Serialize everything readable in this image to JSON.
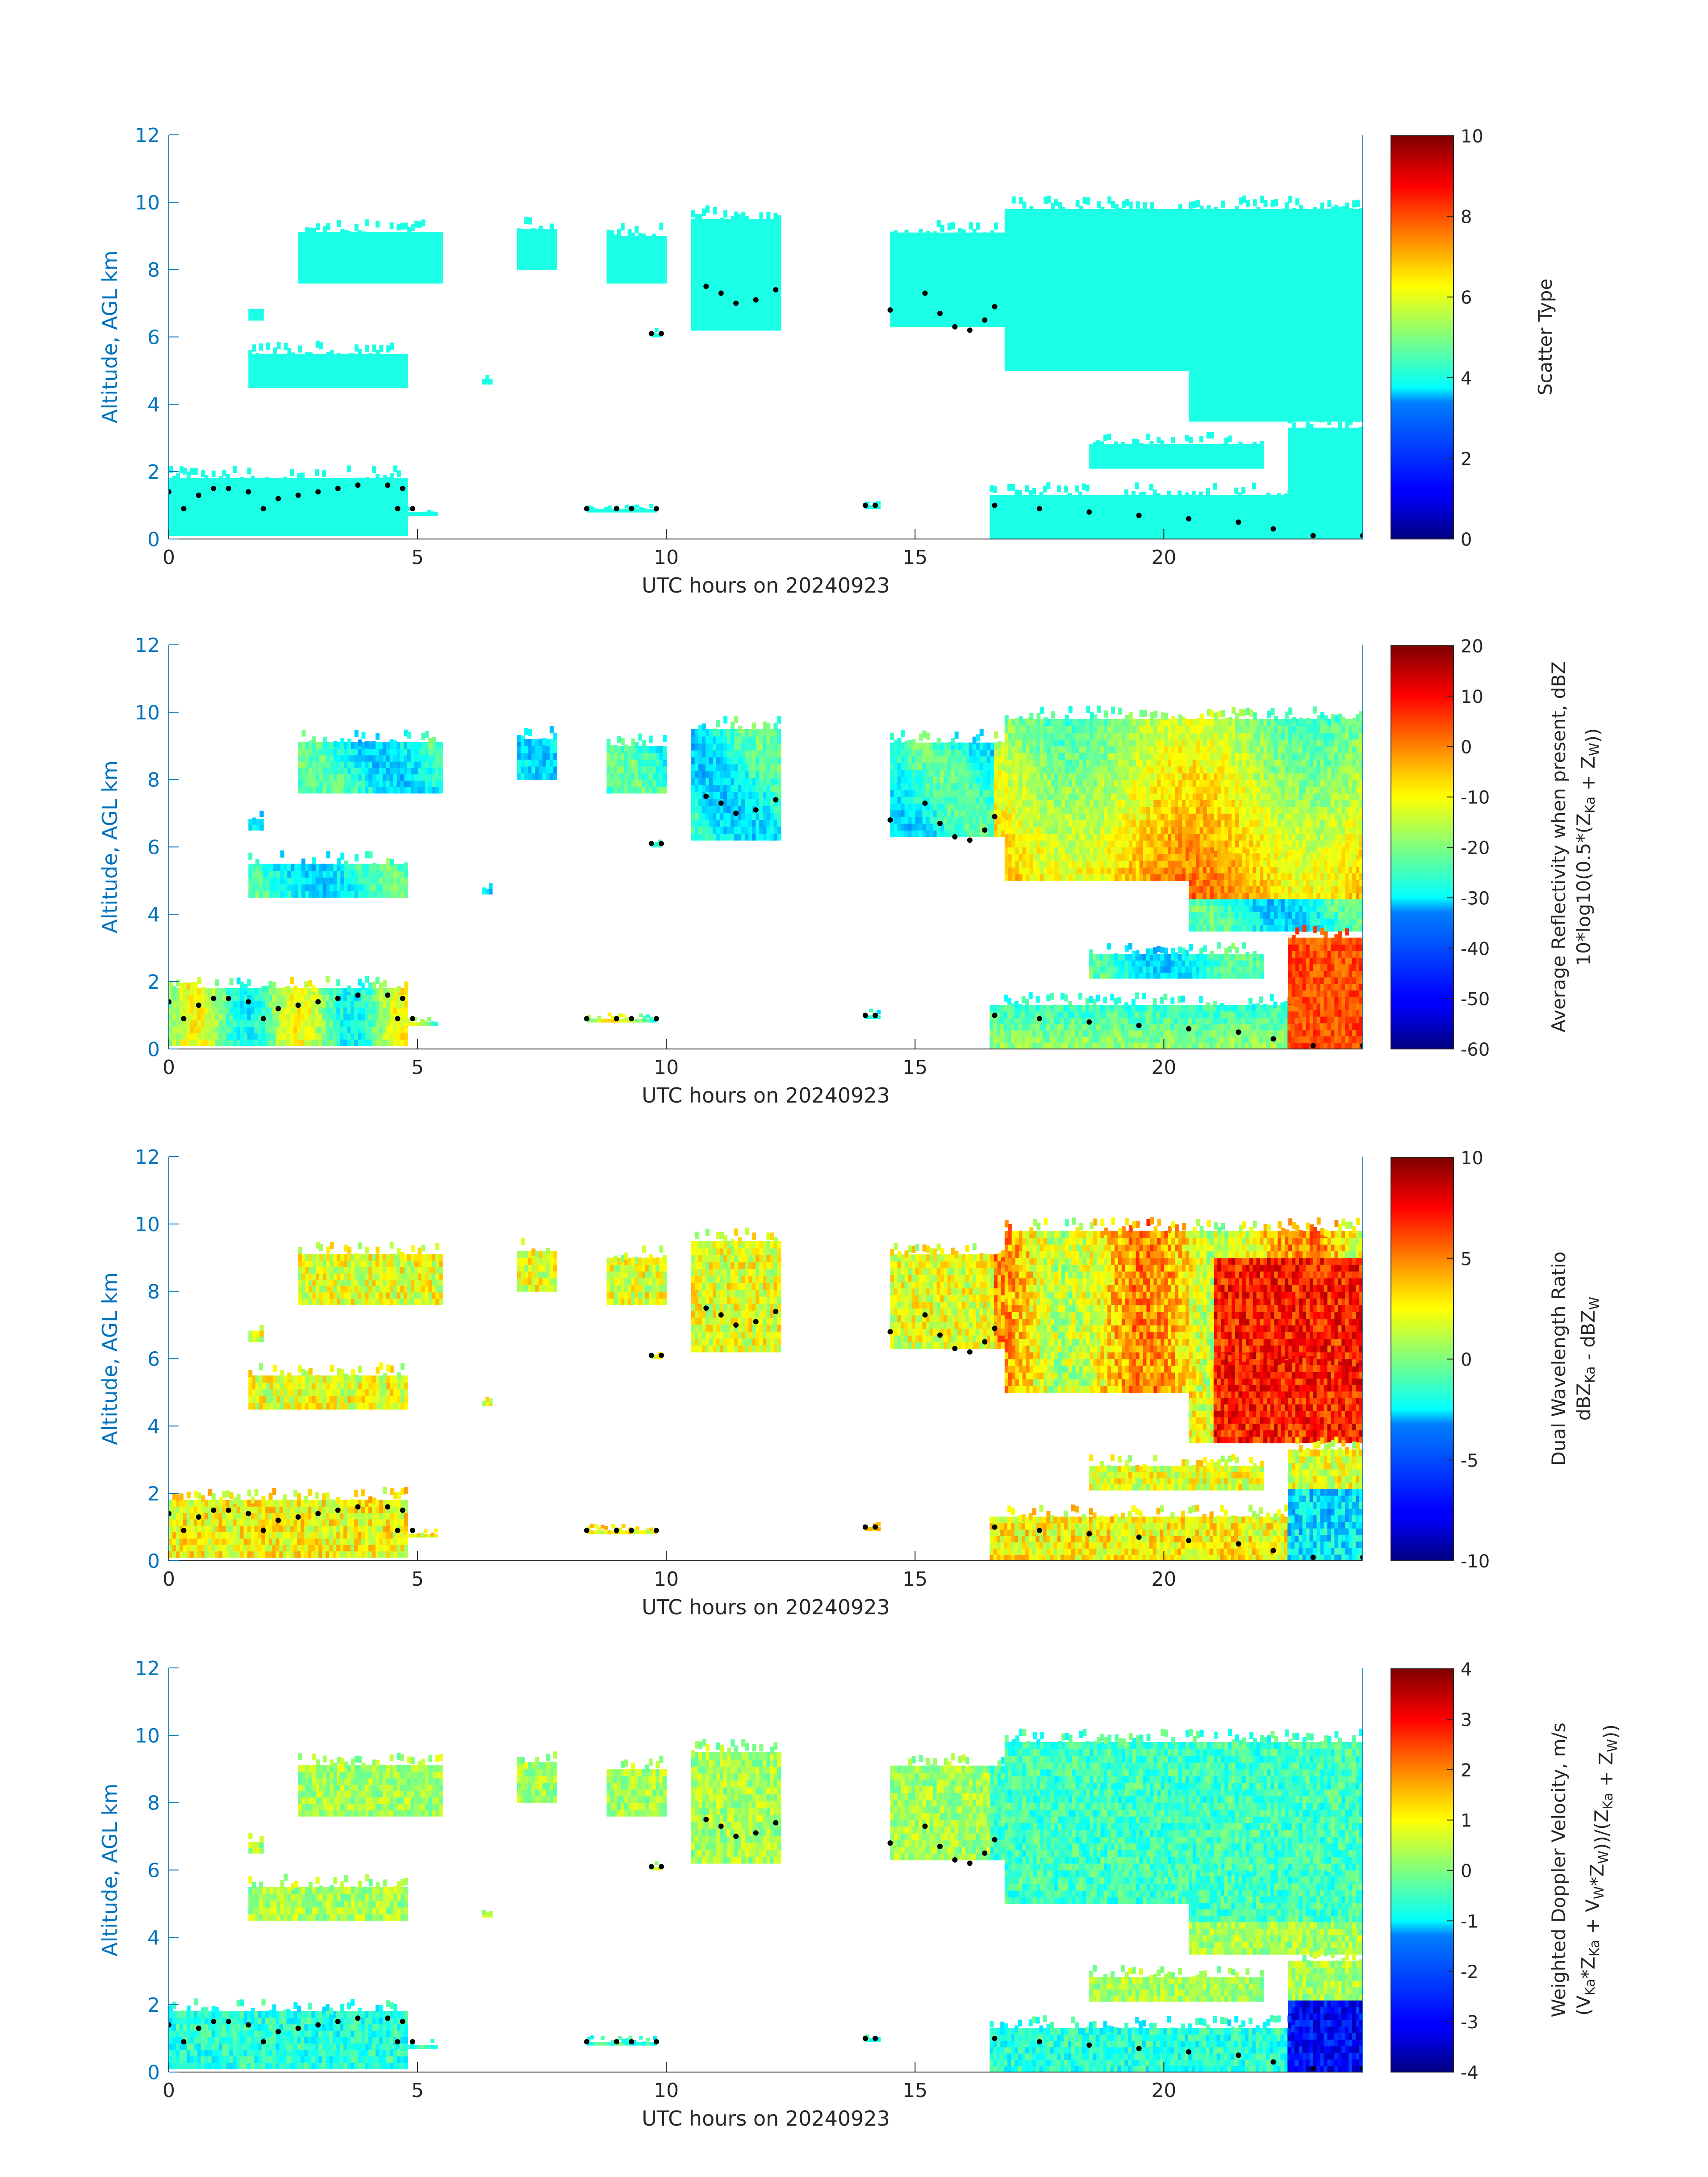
{
  "chart_data": [
    {
      "type": "heatmap",
      "xlabel": "UTC hours on 20240923",
      "ylabel": "Altitude, AGL km",
      "xlim": [
        0,
        24
      ],
      "ylim": [
        0,
        12
      ],
      "xticks": [
        0,
        5,
        10,
        15,
        20
      ],
      "yticks": [
        0,
        2,
        4,
        6,
        8,
        10,
        12
      ],
      "colorbar": {
        "label_lines": [
          "Scatter Type"
        ],
        "ticks": [
          0,
          2,
          4,
          6,
          8,
          10
        ],
        "range": [
          0,
          10
        ]
      },
      "colormap": "jet",
      "dominant_value": 4,
      "overlay": "cloud-base points (black dots)"
    },
    {
      "type": "heatmap",
      "xlabel": "UTC hours on 20240923",
      "ylabel": "Altitude, AGL km",
      "xlim": [
        0,
        24
      ],
      "ylim": [
        0,
        12
      ],
      "xticks": [
        0,
        5,
        10,
        15,
        20
      ],
      "yticks": [
        0,
        2,
        4,
        6,
        8,
        10,
        12
      ],
      "colorbar": {
        "label_lines": [
          "Average Reflectivity when present, dBZ",
          "10*log10(0.5*(Z_Ka + Z_W))"
        ],
        "ticks": [
          -60,
          -50,
          -40,
          -30,
          -20,
          -10,
          0,
          10,
          20
        ],
        "range": [
          -60,
          20
        ]
      },
      "colormap": "jet"
    },
    {
      "type": "heatmap",
      "xlabel": "UTC hours on 20240923",
      "ylabel": "Altitude, AGL km",
      "xlim": [
        0,
        24
      ],
      "ylim": [
        0,
        12
      ],
      "xticks": [
        0,
        5,
        10,
        15,
        20
      ],
      "yticks": [
        0,
        2,
        4,
        6,
        8,
        10,
        12
      ],
      "colorbar": {
        "label_lines": [
          "Dual Wavelength Ratio",
          "dBZ_Ka - dBZ_W"
        ],
        "ticks": [
          -10,
          -5,
          0,
          5,
          10
        ],
        "range": [
          -10,
          10
        ]
      },
      "colormap": "jet"
    },
    {
      "type": "heatmap",
      "xlabel": "UTC hours on 20240923",
      "ylabel": "Altitude, AGL km",
      "xlim": [
        0,
        24
      ],
      "ylim": [
        0,
        12
      ],
      "xticks": [
        0,
        5,
        10,
        15,
        20
      ],
      "yticks": [
        0,
        2,
        4,
        6,
        8,
        10,
        12
      ],
      "colorbar": {
        "label_lines": [
          "Weighted Doppler Velocity, m/s",
          "(V_Ka*Z_Ka + V_W*Z_W))/(Z_Ka + Z_W))"
        ],
        "ticks": [
          -4,
          -3,
          -2,
          -1,
          0,
          1,
          2,
          3,
          4
        ],
        "range": [
          -4,
          4
        ]
      },
      "colormap": "jet"
    }
  ],
  "cloud_regions": [
    {
      "t0": 1.6,
      "t1": 1.9,
      "z0": 6.5,
      "z1": 7.0
    },
    {
      "t0": 1.6,
      "t1": 4.8,
      "z0": 4.5,
      "z1": 5.7
    },
    {
      "t0": 2.6,
      "t1": 5.5,
      "z0": 7.6,
      "z1": 9.3
    },
    {
      "t0": 0.0,
      "t1": 4.8,
      "z0": 0.1,
      "z1": 2.0
    },
    {
      "t0": 4.5,
      "t1": 5.4,
      "z0": 0.7,
      "z1": 0.9
    },
    {
      "t0": 6.3,
      "t1": 6.5,
      "z0": 4.6,
      "z1": 4.9
    },
    {
      "t0": 7.0,
      "t1": 7.8,
      "z0": 8.0,
      "z1": 9.4
    },
    {
      "t0": 8.8,
      "t1": 10.0,
      "z0": 7.6,
      "z1": 9.2
    },
    {
      "t0": 9.7,
      "t1": 9.9,
      "z0": 6.0,
      "z1": 6.2
    },
    {
      "t0": 10.5,
      "t1": 12.3,
      "z0": 6.2,
      "z1": 9.7
    },
    {
      "t0": 14.5,
      "t1": 16.8,
      "z0": 6.3,
      "z1": 9.3
    },
    {
      "t0": 16.8,
      "t1": 24.0,
      "z0": 5.0,
      "z1": 10.0
    },
    {
      "t0": 20.5,
      "t1": 24.0,
      "z0": 3.5,
      "z1": 6.0
    },
    {
      "t0": 22.5,
      "t1": 24.0,
      "z0": 0.0,
      "z1": 3.5
    },
    {
      "t0": 18.5,
      "t1": 22.0,
      "z0": 2.1,
      "z1": 3.0
    },
    {
      "t0": 16.5,
      "t1": 22.7,
      "z0": 0.0,
      "z1": 1.5
    },
    {
      "t0": 8.4,
      "t1": 9.8,
      "z0": 0.8,
      "z1": 1.0
    },
    {
      "t0": 14.0,
      "t1": 14.3,
      "z0": 0.9,
      "z1": 1.1
    }
  ],
  "cloud_base_points": [
    [
      0.0,
      1.4
    ],
    [
      0.3,
      0.9
    ],
    [
      0.6,
      1.3
    ],
    [
      0.9,
      1.5
    ],
    [
      1.2,
      1.5
    ],
    [
      1.6,
      1.4
    ],
    [
      1.9,
      0.9
    ],
    [
      2.2,
      1.2
    ],
    [
      2.6,
      1.3
    ],
    [
      3.0,
      1.4
    ],
    [
      3.4,
      1.5
    ],
    [
      3.8,
      1.6
    ],
    [
      4.4,
      1.6
    ],
    [
      4.7,
      1.5
    ],
    [
      4.6,
      0.9
    ],
    [
      4.9,
      0.9
    ],
    [
      8.4,
      0.9
    ],
    [
      9.0,
      0.9
    ],
    [
      9.3,
      0.9
    ],
    [
      9.8,
      0.9
    ],
    [
      14.0,
      1.0
    ],
    [
      14.2,
      1.0
    ],
    [
      9.7,
      6.1
    ],
    [
      9.9,
      6.1
    ],
    [
      10.8,
      7.5
    ],
    [
      11.1,
      7.3
    ],
    [
      11.4,
      7.0
    ],
    [
      11.8,
      7.1
    ],
    [
      12.2,
      7.4
    ],
    [
      15.2,
      7.3
    ],
    [
      15.5,
      6.7
    ],
    [
      15.8,
      6.3
    ],
    [
      16.1,
      6.2
    ],
    [
      16.4,
      6.5
    ],
    [
      16.6,
      6.9
    ],
    [
      14.5,
      6.8
    ],
    [
      16.6,
      1.0
    ],
    [
      17.5,
      0.9
    ],
    [
      18.5,
      0.8
    ],
    [
      19.5,
      0.7
    ],
    [
      20.5,
      0.6
    ],
    [
      21.5,
      0.5
    ],
    [
      22.2,
      0.3
    ],
    [
      23.0,
      0.1
    ],
    [
      24.0,
      0.1
    ]
  ]
}
